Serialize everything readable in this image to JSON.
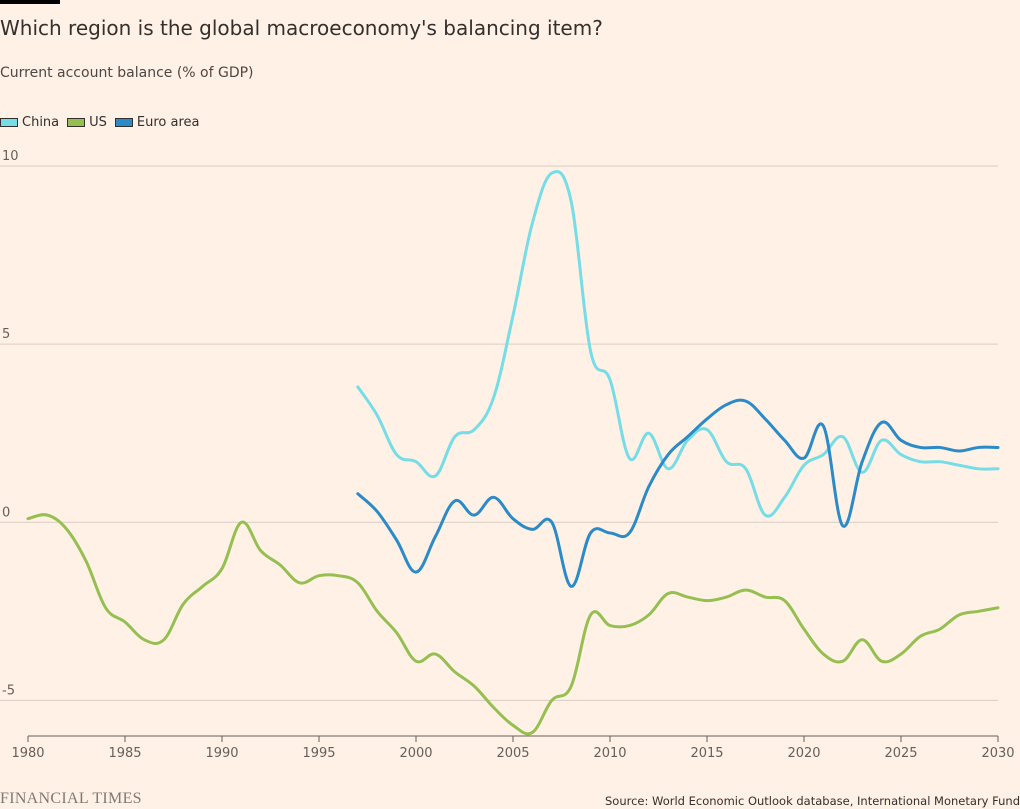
{
  "header": {
    "title": "Which region is the global macroeconomy's balancing item?",
    "subtitle": "Current account balance (% of GDP)"
  },
  "footer": {
    "brand": "FINANCIAL TIMES",
    "source": "Source: World Economic Outlook database, International Monetary Fund"
  },
  "chart_data": {
    "type": "line",
    "title": "Which region is the global macroeconomy's balancing item?",
    "subtitle": "Current account balance (% of GDP)",
    "xlabel": "",
    "ylabel": "",
    "xlim": [
      1980,
      2030
    ],
    "ylim": [
      -6,
      10
    ],
    "grid": true,
    "legend_placement": "top-left",
    "x_ticks": [
      1980,
      1985,
      1990,
      1995,
      2000,
      2005,
      2010,
      2015,
      2020,
      2025,
      2030
    ],
    "y_ticks": [
      10,
      5,
      0,
      -5
    ],
    "series": [
      {
        "name": "China",
        "color": "#76dde6",
        "x": [
          1997,
          1998,
          1999,
          2000,
          2001,
          2002,
          2003,
          2004,
          2005,
          2006,
          2007,
          2008,
          2009,
          2010,
          2011,
          2012,
          2013,
          2014,
          2015,
          2016,
          2017,
          2018,
          2019,
          2020,
          2021,
          2022,
          2023,
          2024,
          2025,
          2026,
          2027,
          2028,
          2029,
          2030
        ],
        "values": [
          3.8,
          3.0,
          1.9,
          1.7,
          1.3,
          2.4,
          2.6,
          3.5,
          5.8,
          8.4,
          9.8,
          9.0,
          4.8,
          4.0,
          1.8,
          2.5,
          1.5,
          2.3,
          2.6,
          1.7,
          1.5,
          0.2,
          0.7,
          1.6,
          1.9,
          2.4,
          1.4,
          2.3,
          1.9,
          1.7,
          1.7,
          1.6,
          1.5,
          1.5
        ]
      },
      {
        "name": "US",
        "color": "#96bf52",
        "x": [
          1980,
          1981,
          1982,
          1983,
          1984,
          1985,
          1986,
          1987,
          1988,
          1989,
          1990,
          1991,
          1992,
          1993,
          1994,
          1995,
          1996,
          1997,
          1998,
          1999,
          2000,
          2001,
          2002,
          2003,
          2004,
          2005,
          2006,
          2007,
          2008,
          2009,
          2010,
          2011,
          2012,
          2013,
          2014,
          2015,
          2016,
          2017,
          2018,
          2019,
          2020,
          2021,
          2022,
          2023,
          2024,
          2025,
          2026,
          2027,
          2028,
          2029,
          2030
        ],
        "values": [
          0.1,
          0.2,
          -0.2,
          -1.1,
          -2.4,
          -2.8,
          -3.3,
          -3.3,
          -2.3,
          -1.8,
          -1.3,
          0.0,
          -0.8,
          -1.2,
          -1.7,
          -1.5,
          -1.5,
          -1.7,
          -2.5,
          -3.1,
          -3.9,
          -3.7,
          -4.2,
          -4.6,
          -5.2,
          -5.7,
          -5.9,
          -5.0,
          -4.6,
          -2.6,
          -2.9,
          -2.9,
          -2.6,
          -2.0,
          -2.1,
          -2.2,
          -2.1,
          -1.9,
          -2.1,
          -2.2,
          -3.0,
          -3.7,
          -3.9,
          -3.3,
          -3.9,
          -3.7,
          -3.2,
          -3.0,
          -2.6,
          -2.5,
          -2.4
        ]
      },
      {
        "name": "Euro area",
        "color": "#2b8ac8",
        "x": [
          1997,
          1998,
          1999,
          2000,
          2001,
          2002,
          2003,
          2004,
          2005,
          2006,
          2007,
          2008,
          2009,
          2010,
          2011,
          2012,
          2013,
          2014,
          2015,
          2016,
          2017,
          2018,
          2019,
          2020,
          2021,
          2022,
          2023,
          2024,
          2025,
          2026,
          2027,
          2028,
          2029,
          2030
        ],
        "values": [
          0.8,
          0.3,
          -0.5,
          -1.4,
          -0.4,
          0.6,
          0.2,
          0.7,
          0.1,
          -0.2,
          0.0,
          -1.8,
          -0.3,
          -0.3,
          -0.3,
          1.0,
          1.9,
          2.4,
          2.9,
          3.3,
          3.4,
          2.9,
          2.3,
          1.8,
          2.7,
          -0.1,
          1.7,
          2.8,
          2.3,
          2.1,
          2.1,
          2.0,
          2.1,
          2.1
        ]
      }
    ]
  }
}
